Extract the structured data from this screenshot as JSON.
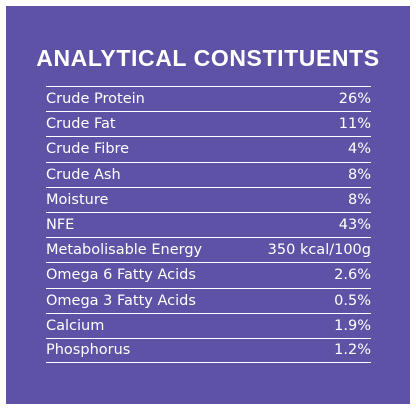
{
  "title": "ANALYTICAL CONSTITUENTS",
  "colors": {
    "panel_background": "#5e52a6",
    "text": "#ffffff"
  },
  "rows": [
    {
      "label": "Crude Protein",
      "value": "26%"
    },
    {
      "label": "Crude Fat",
      "value": "11%"
    },
    {
      "label": "Crude Fibre",
      "value": "4%"
    },
    {
      "label": "Crude Ash",
      "value": "8%"
    },
    {
      "label": "Moisture",
      "value": "8%"
    },
    {
      "label": "NFE",
      "value": "43%"
    },
    {
      "label": "Metabolisable Energy",
      "value": "350 kcal/100g"
    },
    {
      "label": "Omega 6 Fatty Acids",
      "value": "2.6%"
    },
    {
      "label": "Omega 3 Fatty Acids",
      "value": "0.5%"
    },
    {
      "label": "Calcium",
      "value": "1.9%"
    },
    {
      "label": "Phosphorus",
      "value": "1.2%"
    }
  ]
}
